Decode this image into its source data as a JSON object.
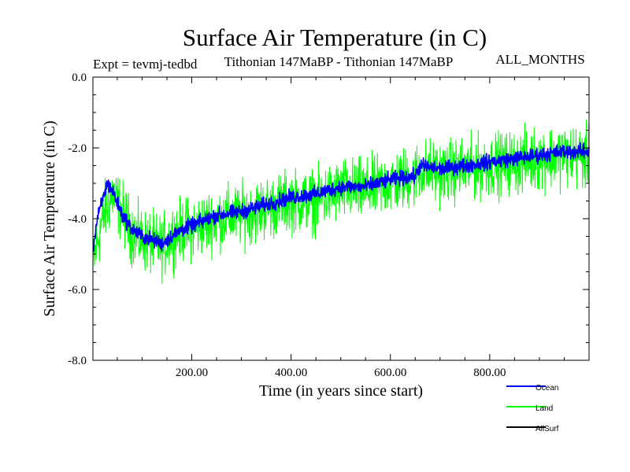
{
  "chart_data": {
    "type": "line",
    "title": "Surface Air Temperature (in C)",
    "subtitle_left": "Expt = tevmj-tedbd",
    "subtitle_center": "Tithonian 147MaBP - Tithonian 147MaBP",
    "subtitle_right": "ALL_MONTHS",
    "xlabel": "Time (in years since start)",
    "ylabel": "Surface Air Temperature (in C)",
    "xlim": [
      1,
      1000
    ],
    "ylim": [
      -8.0,
      0.0
    ],
    "x_ticks": [
      200,
      400,
      600,
      800
    ],
    "x_tick_labels": [
      "200.00",
      "400.00",
      "600.00",
      "800.00"
    ],
    "y_ticks": [
      0,
      -2,
      -4,
      -6,
      -8
    ],
    "y_tick_labels": [
      "0.0",
      "-2.0",
      "-4.0",
      "-6.0",
      "-8.0"
    ],
    "legend_position": "bottom-right",
    "series": [
      {
        "name": "Land",
        "color": "#00ff00",
        "noise_amplitude": 0.75,
        "x": [
          1,
          20,
          40,
          60,
          80,
          100,
          120,
          140,
          160,
          180,
          200,
          250,
          300,
          350,
          400,
          450,
          500,
          550,
          600,
          650,
          660,
          700,
          750,
          800,
          850,
          900,
          950,
          1000
        ],
        "values": [
          -5.3,
          -4.0,
          -3.3,
          -3.8,
          -4.4,
          -4.6,
          -4.7,
          -4.8,
          -4.5,
          -4.3,
          -4.3,
          -4.0,
          -3.9,
          -3.7,
          -3.5,
          -3.5,
          -3.2,
          -3.2,
          -3.0,
          -2.8,
          -2.6,
          -2.7,
          -2.6,
          -2.5,
          -2.4,
          -2.3,
          -2.2,
          -2.3
        ]
      },
      {
        "name": "Ocean",
        "color": "#0000ff",
        "noise_amplitude": 0.18,
        "x": [
          1,
          10,
          30,
          40,
          60,
          80,
          100,
          120,
          140,
          160,
          180,
          200,
          250,
          300,
          350,
          400,
          450,
          500,
          550,
          600,
          650,
          660,
          700,
          750,
          800,
          850,
          900,
          950,
          1000
        ],
        "values": [
          -4.9,
          -4.0,
          -3.0,
          -3.2,
          -3.9,
          -4.3,
          -4.5,
          -4.6,
          -4.7,
          -4.5,
          -4.3,
          -4.2,
          -3.9,
          -3.8,
          -3.6,
          -3.4,
          -3.3,
          -3.1,
          -3.1,
          -2.9,
          -2.8,
          -2.5,
          -2.6,
          -2.5,
          -2.4,
          -2.3,
          -2.2,
          -2.1,
          -2.1
        ]
      },
      {
        "name": "AllSurf",
        "color": "#000000",
        "noise_amplitude": 0.0,
        "x": [],
        "values": []
      }
    ]
  }
}
